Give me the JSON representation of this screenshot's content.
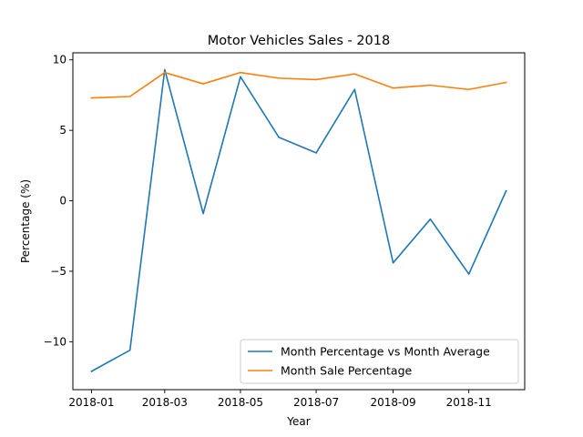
{
  "chart_data": {
    "type": "line",
    "title": "Motor Vehicles Sales - 2018",
    "xlabel": "Year",
    "ylabel": "Percentage (%)",
    "x": [
      "2018-01-01",
      "2018-02-01",
      "2018-03-01",
      "2018-04-01",
      "2018-05-01",
      "2018-06-01",
      "2018-07-01",
      "2018-08-01",
      "2018-09-01",
      "2018-10-01",
      "2018-11-01",
      "2018-12-01"
    ],
    "xlim": [
      "2017-12-17",
      "2018-12-16"
    ],
    "ylim": [
      -13.4,
      10.5
    ],
    "x_ticks": [
      {
        "value": "2018-01-01",
        "label": "2018-01"
      },
      {
        "value": "2018-03-01",
        "label": "2018-03"
      },
      {
        "value": "2018-05-01",
        "label": "2018-05"
      },
      {
        "value": "2018-07-01",
        "label": "2018-07"
      },
      {
        "value": "2018-09-01",
        "label": "2018-09"
      },
      {
        "value": "2018-11-01",
        "label": "2018-11"
      }
    ],
    "y_ticks": [
      {
        "value": 10,
        "label": "10"
      },
      {
        "value": 5,
        "label": "5"
      },
      {
        "value": 0,
        "label": "0"
      },
      {
        "value": -5,
        "label": "−5"
      },
      {
        "value": -10,
        "label": "−10"
      }
    ],
    "grid": false,
    "legend_position": "lower-right",
    "series": [
      {
        "name": "Month Percentage vs Month Average",
        "color": "#1f77b4",
        "values": [
          -12.1,
          -10.6,
          9.3,
          -0.9,
          8.8,
          4.5,
          3.4,
          7.9,
          -4.4,
          -1.3,
          -5.2,
          0.7
        ]
      },
      {
        "name": "Month Sale Percentage",
        "color": "#ff7f0e",
        "values": [
          7.3,
          7.4,
          9.1,
          8.3,
          9.1,
          8.7,
          8.6,
          9.0,
          8.0,
          8.2,
          7.9,
          8.4
        ]
      }
    ]
  }
}
